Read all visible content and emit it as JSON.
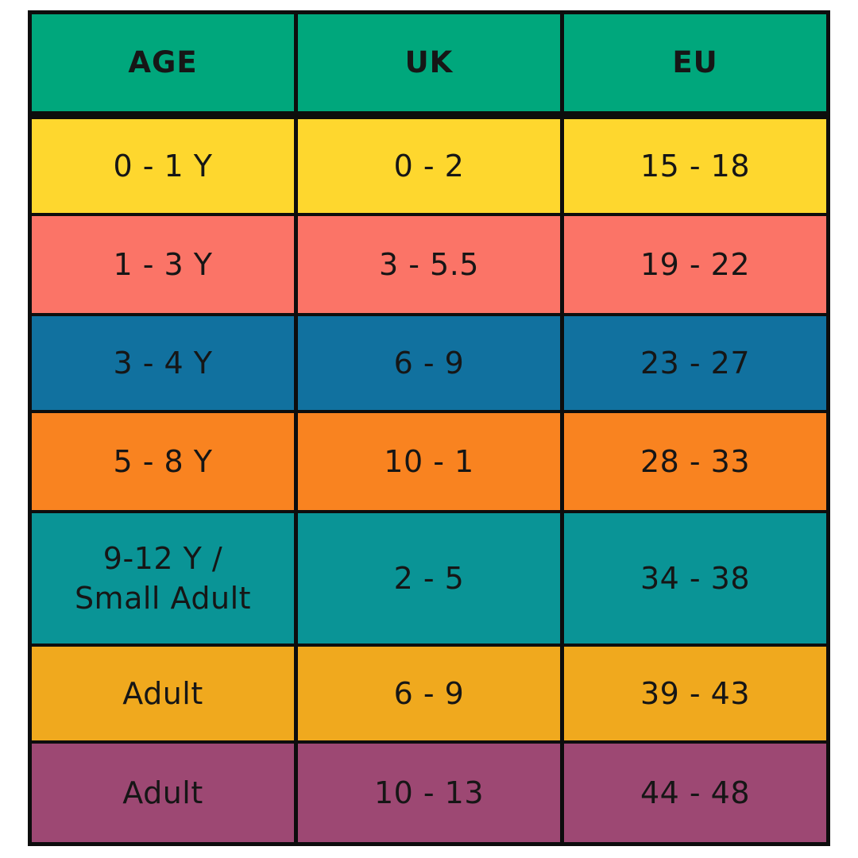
{
  "colors": {
    "border": "#0d0d0d",
    "text": "#161616",
    "header_bg": "#00a77c"
  },
  "table": {
    "headers": [
      "AGE",
      "UK",
      "EU"
    ],
    "rows": [
      {
        "age": "0 - 1 Y",
        "uk": "0 - 2",
        "eu": "15 - 18",
        "bg": "#fed72e"
      },
      {
        "age": "1 - 3 Y",
        "uk": "3 - 5.5",
        "eu": "19 - 22",
        "bg": "#fb7467"
      },
      {
        "age": "3 - 4 Y",
        "uk": "6 - 9",
        "eu": "23 - 27",
        "bg": "#11719f"
      },
      {
        "age": "5 - 8 Y",
        "uk": "10 - 1",
        "eu": "28 - 33",
        "bg": "#f98320"
      },
      {
        "age": "9-12 Y /\nSmall Adult",
        "uk": "2 - 5",
        "eu": "34 - 38",
        "bg": "#0a9496"
      },
      {
        "age": "Adult",
        "uk": "6 - 9",
        "eu": "39 - 43",
        "bg": "#f0a91e"
      },
      {
        "age": "Adult",
        "uk": "10 - 13",
        "eu": "44 - 48",
        "bg": "#9d4873"
      }
    ]
  },
  "chart_data": {
    "type": "table",
    "columns": [
      "AGE",
      "UK",
      "EU"
    ],
    "rows": [
      [
        "0 - 1 Y",
        "0 - 2",
        "15 - 18"
      ],
      [
        "1 - 3 Y",
        "3 - 5.5",
        "19 - 22"
      ],
      [
        "3 - 4 Y",
        "6 - 9",
        "23 - 27"
      ],
      [
        "5 - 8 Y",
        "10 - 1",
        "28 - 33"
      ],
      [
        "9-12 Y / Small Adult",
        "2 - 5",
        "34 - 38"
      ],
      [
        "Adult",
        "6 - 9",
        "39 - 43"
      ],
      [
        "Adult",
        "10 - 13",
        "44 - 48"
      ]
    ],
    "row_colors": [
      "#fed72e",
      "#fb7467",
      "#11719f",
      "#f98320",
      "#0a9496",
      "#f0a91e",
      "#9d4873"
    ],
    "header_color": "#00a77c"
  }
}
